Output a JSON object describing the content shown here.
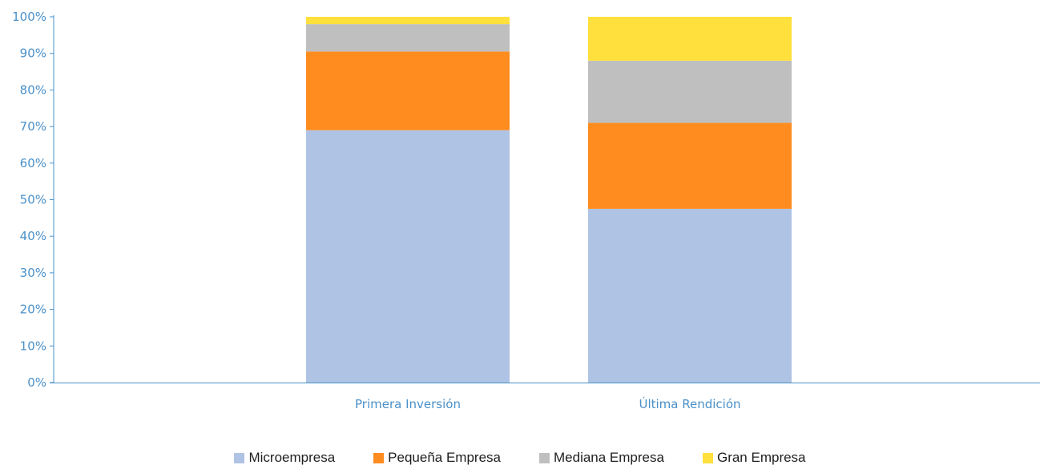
{
  "colors": {
    "axis": "#4a90c8",
    "tick_text": "#4a90c8",
    "category_text": "#4a90c8",
    "legend_text": "#1f1f1f"
  },
  "chart_data": {
    "type": "bar",
    "stacked": true,
    "categories": [
      "Primera Inversión",
      "Última Rendición"
    ],
    "series": [
      {
        "name": "Microempresa",
        "color": "#afc3e4",
        "values": [
          69,
          47.5
        ]
      },
      {
        "name": "Pequeña Empresa",
        "color": "#ff8c1f",
        "values": [
          21.5,
          23.5
        ]
      },
      {
        "name": "Mediana Empresa",
        "color": "#bfbfbf",
        "values": [
          7.5,
          17
        ]
      },
      {
        "name": "Gran Empresa",
        "color": "#ffe03c",
        "values": [
          2,
          12
        ]
      }
    ],
    "ylim": [
      0,
      100
    ],
    "yticks": [
      "0%",
      "10%",
      "20%",
      "30%",
      "40%",
      "50%",
      "60%",
      "70%",
      "80%",
      "90%",
      "100%"
    ],
    "grid": false,
    "legend_position": "bottom"
  }
}
